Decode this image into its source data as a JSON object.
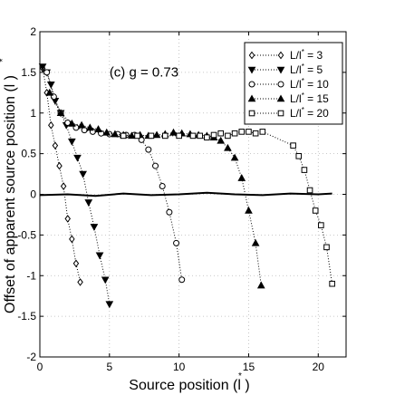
{
  "chart_data": {
    "type": "line",
    "title": "",
    "annotation": "(c) g = 0.73",
    "xlabel": "Source position (l )",
    "xlabel_sup": "*",
    "ylabel": "Offset of apparent source position (l )",
    "ylabel_sup": "*",
    "xlim": [
      0,
      22
    ],
    "ylim": [
      -2,
      2
    ],
    "x_ticks": [
      0,
      5,
      10,
      15,
      20
    ],
    "y_ticks": [
      -2,
      -1.5,
      -1,
      -0.5,
      0,
      0.5,
      1,
      1.5,
      2
    ],
    "grid": true,
    "legend_position": "top-right",
    "series": [
      {
        "name": "L/l* = 3",
        "label_main": "L/l",
        "label_sup": "*",
        "label_value": " = 3",
        "marker": "diamond",
        "x": [
          0.2,
          0.5,
          0.8,
          1.1,
          1.4,
          1.7,
          2.0,
          2.3,
          2.6,
          2.9
        ],
        "y": [
          1.55,
          1.25,
          0.85,
          0.6,
          0.35,
          0.1,
          -0.3,
          -0.55,
          -0.85,
          -1.08
        ]
      },
      {
        "name": "L/l* = 5",
        "label_main": "L/l",
        "label_sup": "*",
        "label_value": " = 5",
        "marker": "triangle-down",
        "x": [
          0.2,
          0.5,
          0.8,
          1.1,
          1.5,
          1.9,
          2.3,
          2.7,
          3.1,
          3.5,
          3.9,
          4.3,
          4.7,
          5.0
        ],
        "y": [
          1.57,
          1.5,
          1.35,
          1.15,
          1.0,
          0.85,
          0.65,
          0.45,
          0.25,
          -0.1,
          -0.4,
          -0.75,
          -1.05,
          -1.35
        ]
      },
      {
        "name": "L/l* = 10",
        "label_main": "L/l",
        "label_sup": "*",
        "label_value": " = 10",
        "marker": "circle",
        "x": [
          0.5,
          1.0,
          1.5,
          2.0,
          2.6,
          3.2,
          3.8,
          4.4,
          5.0,
          5.6,
          6.2,
          6.8,
          7.3,
          7.8,
          8.3,
          8.8,
          9.3,
          9.8,
          10.2
        ],
        "y": [
          1.5,
          1.2,
          1.0,
          0.88,
          0.82,
          0.79,
          0.77,
          0.75,
          0.74,
          0.74,
          0.73,
          0.73,
          0.67,
          0.55,
          0.35,
          0.1,
          -0.22,
          -0.6,
          -1.05
        ]
      },
      {
        "name": "L/l* = 15",
        "label_main": "L/l",
        "label_sup": "*",
        "label_value": " = 15",
        "marker": "triangle-up",
        "x": [
          0.7,
          1.5,
          2.3,
          3.0,
          3.6,
          4.2,
          4.8,
          5.4,
          6.0,
          6.6,
          7.2,
          7.8,
          8.4,
          9.0,
          9.6,
          10.2,
          10.8,
          11.4,
          12.0,
          12.5,
          13.0,
          13.5,
          14.0,
          14.5,
          15.0,
          15.5,
          15.9
        ],
        "y": [
          1.25,
          1.0,
          0.87,
          0.85,
          0.82,
          0.8,
          0.76,
          0.74,
          0.73,
          0.72,
          0.73,
          0.72,
          0.73,
          0.74,
          0.76,
          0.75,
          0.74,
          0.73,
          0.72,
          0.7,
          0.66,
          0.57,
          0.45,
          0.2,
          -0.2,
          -0.6,
          -1.12
        ]
      },
      {
        "name": "L/l* = 20",
        "label_main": "L/l",
        "label_sup": "*",
        "label_value": " = 20",
        "marker": "square",
        "x": [
          6.0,
          7.0,
          8.0,
          9.0,
          10.0,
          11.0,
          11.5,
          12.0,
          12.5,
          13.0,
          13.5,
          14.0,
          14.5,
          15.0,
          15.5,
          16.0,
          18.2,
          18.6,
          19.0,
          19.4,
          19.8,
          20.2,
          20.6,
          21.0
        ],
        "y": [
          0.72,
          0.72,
          0.72,
          0.72,
          0.72,
          0.72,
          0.72,
          0.7,
          0.73,
          0.75,
          0.72,
          0.75,
          0.77,
          0.77,
          0.75,
          0.77,
          0.6,
          0.47,
          0.3,
          0.05,
          -0.2,
          -0.38,
          -0.65,
          -1.1
        ]
      },
      {
        "name": "",
        "marker": "none",
        "style": "solid-thick",
        "x": [
          0,
          2,
          4,
          6,
          8,
          10,
          12,
          14,
          16,
          18,
          20,
          21
        ],
        "y": [
          -0.01,
          0.0,
          -0.02,
          0.01,
          -0.01,
          0.0,
          0.02,
          0.0,
          -0.01,
          0.01,
          0.0,
          0.01
        ]
      }
    ]
  }
}
